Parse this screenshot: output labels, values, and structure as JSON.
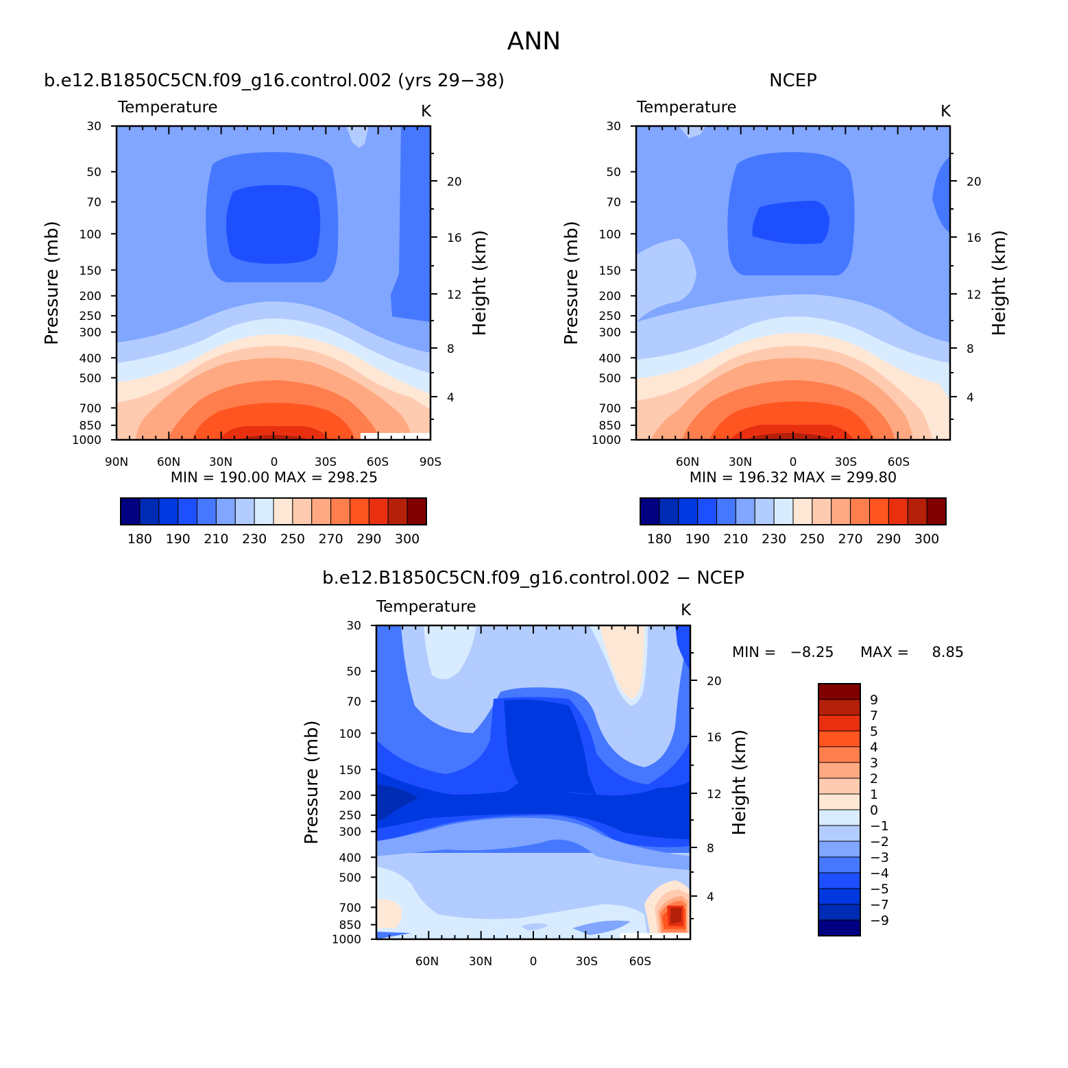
{
  "header": {
    "title": "ANN"
  },
  "colors": {
    "temp_scale": [
      "#000080",
      "#002bb4",
      "#0038e0",
      "#1e4fff",
      "#4678ff",
      "#80a6ff",
      "#b3ccff",
      "#d9ecff",
      "#ffe7d5",
      "#ffcbb0",
      "#ffa982",
      "#ff7e4d",
      "#ff5520",
      "#e83010",
      "#b4200a",
      "#800000"
    ],
    "diff_scale": [
      "#000080",
      "#002bb4",
      "#0038e0",
      "#1e4fff",
      "#4678ff",
      "#80a6ff",
      "#b3ccff",
      "#d9ecff",
      "#ffe7d5",
      "#ffcbb0",
      "#ffa982",
      "#ff7e4d",
      "#ff5520",
      "#e83010",
      "#b4200a",
      "#800000"
    ]
  },
  "panels": [
    {
      "title": "b.e12.B1850C5CN.f09_g16.control.002 (yrs 29−38)",
      "left_label": "Temperature",
      "units": "K",
      "stats": "MIN = 190.00   MAX = 298.25",
      "colorbar_labels": [
        "180",
        "190",
        "210",
        "230",
        "250",
        "270",
        "290",
        "300"
      ]
    },
    {
      "title": "NCEP",
      "left_label": "Temperature",
      "units": "K",
      "stats": "MIN = 196.32   MAX = 299.80",
      "colorbar_labels": [
        "180",
        "190",
        "210",
        "230",
        "250",
        "270",
        "290",
        "300"
      ]
    },
    {
      "title": "b.e12.B1850C5CN.f09_g16.control.002 − NCEP",
      "left_label": "Temperature",
      "units": "K",
      "stats_min": "MIN =   −8.25",
      "stats_max": "MAX =     8.85",
      "colorbar_labels": [
        "9",
        "7",
        "5",
        "4",
        "3",
        "2",
        "1",
        "0",
        "−1",
        "−2",
        "−3",
        "−4",
        "−5",
        "−7",
        "−9"
      ]
    }
  ],
  "chart_data": [
    {
      "type": "heatmap",
      "title": "b.e12.B1850C5CN.f09_g16.control.002 (yrs 29−38)",
      "subtitle": "Temperature",
      "units": "K",
      "xlabel": "",
      "ylabel": "Pressure (mb)",
      "y2label": "Height (km)",
      "x_ticks": [
        "90N",
        "60N",
        "30N",
        "0",
        "30S",
        "60S",
        "90S"
      ],
      "y_ticks": [
        "30",
        "50",
        "70",
        "100",
        "150",
        "200",
        "250",
        "300",
        "400",
        "500",
        "700",
        "850",
        "1000"
      ],
      "y2_ticks": [
        "4",
        "8",
        "12",
        "16",
        "20"
      ],
      "y_scale": "log",
      "levels": [
        180,
        190,
        200,
        210,
        220,
        230,
        240,
        250,
        260,
        270,
        280,
        290,
        300
      ],
      "min": 190.0,
      "max": 298.25
    },
    {
      "type": "heatmap",
      "title": "NCEP",
      "subtitle": "Temperature",
      "units": "K",
      "xlabel": "",
      "ylabel": "Pressure (mb)",
      "y2label": "Height (km)",
      "x_ticks": [
        "60N",
        "30N",
        "0",
        "30S",
        "60S"
      ],
      "y_ticks": [
        "30",
        "50",
        "70",
        "100",
        "150",
        "200",
        "250",
        "300",
        "400",
        "500",
        "700",
        "850",
        "1000"
      ],
      "y2_ticks": [
        "4",
        "8",
        "12",
        "16",
        "20"
      ],
      "y_scale": "log",
      "levels": [
        180,
        190,
        200,
        210,
        220,
        230,
        240,
        250,
        260,
        270,
        280,
        290,
        300
      ],
      "min": 196.32,
      "max": 299.8
    },
    {
      "type": "heatmap",
      "title": "b.e12.B1850C5CN.f09_g16.control.002 − NCEP",
      "subtitle": "Temperature",
      "units": "K",
      "xlabel": "",
      "ylabel": "Pressure (mb)",
      "y2label": "Height (km)",
      "x_ticks": [
        "60N",
        "30N",
        "0",
        "30S",
        "60S"
      ],
      "y_ticks": [
        "30",
        "50",
        "70",
        "100",
        "150",
        "200",
        "250",
        "300",
        "400",
        "500",
        "700",
        "850",
        "1000"
      ],
      "y2_ticks": [
        "4",
        "8",
        "12",
        "16",
        "20"
      ],
      "y_scale": "log",
      "levels": [
        -9,
        -7,
        -5,
        -4,
        -3,
        -2,
        -1,
        0,
        1,
        2,
        3,
        4,
        5,
        7,
        9
      ],
      "min": -8.25,
      "max": 8.85
    }
  ]
}
